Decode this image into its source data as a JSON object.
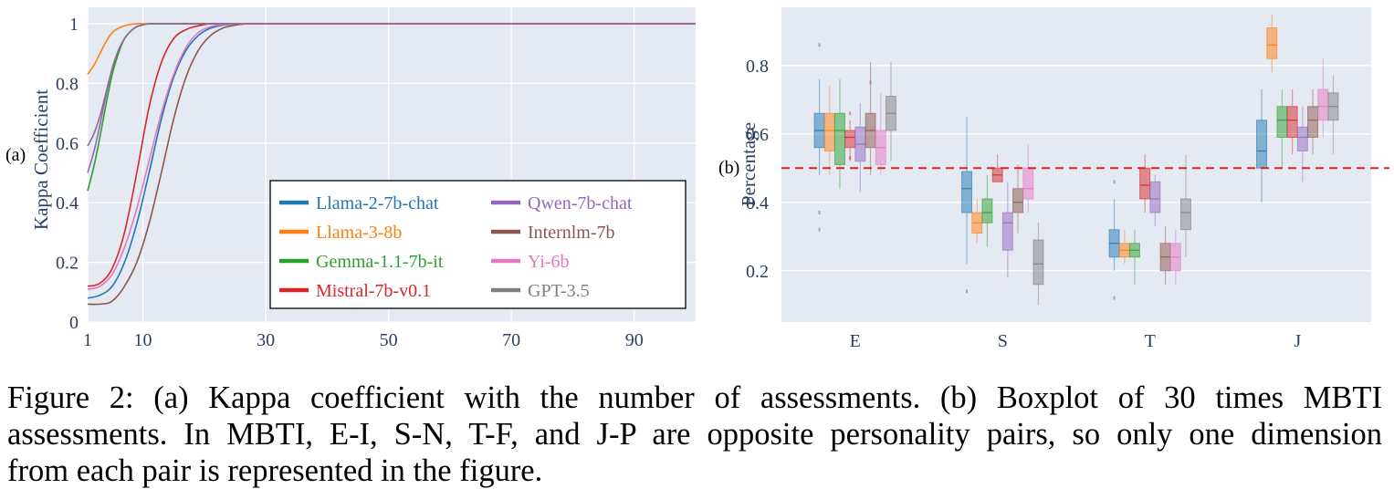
{
  "figure": {
    "panel_a_label": "(a)",
    "panel_b_label": "(b)",
    "caption_lines": [
      "Figure 2: (a) Kappa coefficient with the number of assessments. (b) Boxplot of 30 times MBTI",
      "assessments. In MBTI, E-I, S-N, T-F, and J-P are opposite personality pairs, so only one dimension",
      "from each pair is represented in the figure."
    ]
  },
  "colors": {
    "panel_bg": "#e5e9f2",
    "grid": "#ffffff",
    "threshold": "#e0221c"
  },
  "chart_data": [
    {
      "type": "line",
      "title": "",
      "xlabel": "",
      "ylabel": "Kappa Coefficient",
      "xlim": [
        1,
        100
      ],
      "ylim": [
        0,
        1
      ],
      "xticks": [
        1,
        10,
        30,
        50,
        70,
        90
      ],
      "yticks": [
        0,
        0.2,
        0.4,
        0.6,
        0.8,
        1
      ],
      "ytick_labels": [
        "0",
        "0.2",
        "0.4",
        "0.6",
        "0.8",
        "1"
      ],
      "legend_position": "bottom-right",
      "series": [
        {
          "name": "Llama-2-7b-chat",
          "color": "#1f77b4",
          "legend_color": "#1f77b4",
          "x": [
            1,
            3,
            5,
            7,
            9,
            11,
            13,
            15,
            17,
            19,
            21,
            23,
            25,
            27,
            30,
            40,
            100
          ],
          "y": [
            0.08,
            0.09,
            0.12,
            0.2,
            0.33,
            0.5,
            0.68,
            0.82,
            0.91,
            0.96,
            0.985,
            0.995,
            1.0,
            1.0,
            1.0,
            1.0,
            1.0
          ]
        },
        {
          "name": "Llama-3-8b",
          "color": "#ff7f0e",
          "legend_color": "#ff7f0e",
          "x": [
            1,
            2,
            3,
            4,
            5,
            6,
            7,
            8,
            9,
            10,
            11,
            12,
            30,
            100
          ],
          "y": [
            0.83,
            0.86,
            0.9,
            0.94,
            0.97,
            0.985,
            0.993,
            0.998,
            1.0,
            1.0,
            1.0,
            1.0,
            1.0,
            1.0
          ]
        },
        {
          "name": "Gemma-1.1-7b-it",
          "color": "#2ca02c",
          "legend_color": "#2ca02c",
          "x": [
            1,
            2,
            3,
            4,
            5,
            6,
            7,
            8,
            9,
            10,
            11,
            12,
            13,
            30,
            100
          ],
          "y": [
            0.44,
            0.52,
            0.62,
            0.73,
            0.83,
            0.9,
            0.95,
            0.975,
            0.99,
            0.996,
            1.0,
            1.0,
            1.0,
            1.0,
            1.0
          ]
        },
        {
          "name": "Mistral-7b-v0.1",
          "color": "#d62728",
          "legend_color": "#d62728",
          "x": [
            1,
            3,
            5,
            7,
            9,
            11,
            13,
            15,
            17,
            19,
            21,
            23,
            30,
            100
          ],
          "y": [
            0.12,
            0.13,
            0.18,
            0.3,
            0.5,
            0.72,
            0.87,
            0.95,
            0.98,
            0.993,
            1.0,
            1.0,
            1.0,
            1.0
          ]
        },
        {
          "name": "Qwen-7b-chat",
          "color": "#9467bd",
          "legend_color": "#9467bd",
          "x": [
            1,
            2,
            3,
            4,
            5,
            6,
            7,
            8,
            9,
            10,
            11,
            12,
            13,
            30,
            100
          ],
          "y": [
            0.5,
            0.57,
            0.66,
            0.76,
            0.85,
            0.91,
            0.95,
            0.975,
            0.99,
            0.996,
            1.0,
            1.0,
            1.0,
            1.0,
            1.0
          ]
        },
        {
          "name": "Internlm-7b",
          "color": "#8c564b",
          "legend_color": "#8c564b",
          "x": [
            1,
            3,
            5,
            7,
            9,
            11,
            13,
            15,
            17,
            19,
            21,
            23,
            25,
            27,
            29,
            30,
            100
          ],
          "y": [
            0.06,
            0.06,
            0.07,
            0.12,
            0.2,
            0.33,
            0.5,
            0.68,
            0.82,
            0.91,
            0.96,
            0.985,
            0.995,
            1.0,
            1.0,
            1.0,
            1.0
          ]
        },
        {
          "name": "Yi-6b",
          "color": "#e377c2",
          "legend_color": "#e377c2",
          "x": [
            1,
            3,
            5,
            7,
            9,
            11,
            13,
            15,
            17,
            19,
            21,
            23,
            25,
            27,
            30,
            100
          ],
          "y": [
            0.11,
            0.12,
            0.16,
            0.25,
            0.38,
            0.54,
            0.7,
            0.83,
            0.92,
            0.97,
            0.99,
            0.997,
            1.0,
            1.0,
            1.0,
            1.0
          ]
        },
        {
          "name": "GPT-3.5",
          "color": "#8c6b8c",
          "legend_color": "#7f7f7f",
          "x": [
            1,
            2,
            3,
            4,
            5,
            6,
            7,
            8,
            9,
            10,
            11,
            12,
            13,
            30,
            100
          ],
          "y": [
            0.59,
            0.63,
            0.69,
            0.77,
            0.85,
            0.91,
            0.95,
            0.975,
            0.99,
            0.996,
            1.0,
            1.0,
            1.0,
            1.0,
            1.0
          ]
        }
      ]
    },
    {
      "type": "box",
      "title": "",
      "xlabel": "",
      "ylabel": "Percentage",
      "categories": [
        "E",
        "S",
        "T",
        "J"
      ],
      "ylim": [
        0.05,
        0.97
      ],
      "yticks": [
        0.2,
        0.4,
        0.6,
        0.8
      ],
      "reference_line": 0.5,
      "series_names": [
        "Llama-2-7b-chat",
        "Llama-3-8b",
        "Gemma-1.1-7b-it",
        "Mistral-7b-v0.1",
        "Qwen-7b-chat",
        "Internlm-7b",
        "Yi-6b",
        "GPT-3.5"
      ],
      "series_colors": [
        "#1f77b4",
        "#ff7f0e",
        "#2ca02c",
        "#d62728",
        "#9467bd",
        "#8c564b",
        "#e377c2",
        "#7f7f7f"
      ],
      "boxes": {
        "E": [
          {
            "min": 0.48,
            "q1": 0.56,
            "median": 0.61,
            "q3": 0.66,
            "max": 0.76,
            "outliers": [
              0.86,
              0.37,
              0.32
            ]
          },
          {
            "min": 0.48,
            "q1": 0.55,
            "median": 0.61,
            "q3": 0.66,
            "max": 0.74,
            "outliers": []
          },
          {
            "min": 0.44,
            "q1": 0.51,
            "median": 0.61,
            "q3": 0.66,
            "max": 0.76,
            "outliers": []
          },
          {
            "min": 0.52,
            "q1": 0.56,
            "median": 0.59,
            "q3": 0.61,
            "max": 0.64,
            "outliers": [
              0.66,
              0.53
            ]
          },
          {
            "min": 0.43,
            "q1": 0.52,
            "median": 0.57,
            "q3": 0.62,
            "max": 0.69,
            "outliers": []
          },
          {
            "min": 0.48,
            "q1": 0.56,
            "median": 0.61,
            "q3": 0.66,
            "max": 0.81,
            "outliers": [
              0.75
            ]
          },
          {
            "min": 0.48,
            "q1": 0.51,
            "median": 0.56,
            "q3": 0.61,
            "max": 0.72,
            "outliers": []
          },
          {
            "min": 0.52,
            "q1": 0.61,
            "median": 0.66,
            "q3": 0.71,
            "max": 0.81,
            "outliers": []
          }
        ],
        "S": [
          {
            "min": 0.22,
            "q1": 0.37,
            "median": 0.44,
            "q3": 0.49,
            "max": 0.65,
            "outliers": [
              0.14
            ]
          },
          {
            "min": 0.28,
            "q1": 0.31,
            "median": 0.34,
            "q3": 0.37,
            "max": 0.41,
            "outliers": []
          },
          {
            "min": 0.27,
            "q1": 0.34,
            "median": 0.37,
            "q3": 0.41,
            "max": 0.48,
            "outliers": []
          },
          {
            "min": 0.46,
            "q1": 0.46,
            "median": 0.48,
            "q3": 0.5,
            "max": 0.54,
            "outliers": []
          },
          {
            "min": 0.18,
            "q1": 0.26,
            "median": 0.34,
            "q3": 0.37,
            "max": 0.46,
            "outliers": []
          },
          {
            "min": 0.31,
            "q1": 0.37,
            "median": 0.4,
            "q3": 0.44,
            "max": 0.51,
            "outliers": []
          },
          {
            "min": 0.37,
            "q1": 0.41,
            "median": 0.44,
            "q3": 0.5,
            "max": 0.57,
            "outliers": []
          },
          {
            "min": 0.1,
            "q1": 0.16,
            "median": 0.22,
            "q3": 0.29,
            "max": 0.34,
            "outliers": []
          }
        ],
        "T": [
          {
            "min": 0.2,
            "q1": 0.24,
            "median": 0.28,
            "q3": 0.32,
            "max": 0.41,
            "outliers": [
              0.12,
              0.46
            ]
          },
          {
            "min": 0.22,
            "q1": 0.24,
            "median": 0.26,
            "q3": 0.28,
            "max": 0.32,
            "outliers": []
          },
          {
            "min": 0.16,
            "q1": 0.24,
            "median": 0.26,
            "q3": 0.28,
            "max": 0.32,
            "outliers": []
          },
          {
            "min": 0.37,
            "q1": 0.41,
            "median": 0.45,
            "q3": 0.5,
            "max": 0.54,
            "outliers": []
          },
          {
            "min": 0.33,
            "q1": 0.37,
            "median": 0.41,
            "q3": 0.46,
            "max": 0.48,
            "outliers": []
          },
          {
            "min": 0.16,
            "q1": 0.2,
            "median": 0.24,
            "q3": 0.28,
            "max": 0.33,
            "outliers": []
          },
          {
            "min": 0.16,
            "q1": 0.2,
            "median": 0.24,
            "q3": 0.28,
            "max": 0.32,
            "outliers": []
          },
          {
            "min": 0.24,
            "q1": 0.32,
            "median": 0.37,
            "q3": 0.41,
            "max": 0.54,
            "outliers": []
          }
        ],
        "J": [
          {
            "min": 0.4,
            "q1": 0.5,
            "median": 0.55,
            "q3": 0.64,
            "max": 0.73,
            "outliers": []
          },
          {
            "min": 0.78,
            "q1": 0.82,
            "median": 0.86,
            "q3": 0.91,
            "max": 0.95,
            "outliers": []
          },
          {
            "min": 0.5,
            "q1": 0.59,
            "median": 0.64,
            "q3": 0.68,
            "max": 0.73,
            "outliers": []
          },
          {
            "min": 0.54,
            "q1": 0.59,
            "median": 0.64,
            "q3": 0.68,
            "max": 0.73,
            "outliers": []
          },
          {
            "min": 0.46,
            "q1": 0.55,
            "median": 0.59,
            "q3": 0.62,
            "max": 0.68,
            "outliers": []
          },
          {
            "min": 0.54,
            "q1": 0.59,
            "median": 0.64,
            "q3": 0.68,
            "max": 0.73,
            "outliers": []
          },
          {
            "min": 0.59,
            "q1": 0.64,
            "median": 0.68,
            "q3": 0.73,
            "max": 0.82,
            "outliers": []
          },
          {
            "min": 0.54,
            "q1": 0.64,
            "median": 0.68,
            "q3": 0.72,
            "max": 0.77,
            "outliers": []
          }
        ]
      }
    }
  ]
}
